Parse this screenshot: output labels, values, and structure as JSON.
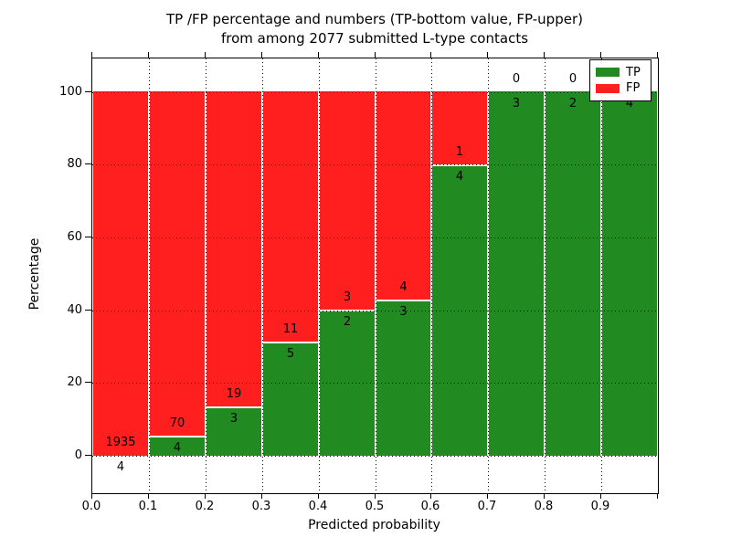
{
  "title": {
    "line1": "TP /FP percentage and numbers (TP-bottom value, FP-upper)",
    "line2": "from among 2077 submitted L-type contacts"
  },
  "axes": {
    "xlabel": "Predicted probability",
    "ylabel": "Percentage",
    "x_tick_labels": [
      "0.0",
      "0.1",
      "0.2",
      "0.3",
      "0.4",
      "0.5",
      "0.6",
      "0.7",
      "0.8",
      "0.9"
    ],
    "y_tick_labels": [
      "0",
      "20",
      "40",
      "60",
      "80",
      "100"
    ],
    "y_tick_values": [
      0,
      20,
      40,
      60,
      80,
      100
    ]
  },
  "legend": {
    "items": [
      {
        "label": "TP",
        "color": "#218a21"
      },
      {
        "label": "FP",
        "color": "#ff1f1f"
      }
    ],
    "position": "upper right"
  },
  "colors": {
    "tp": "#218a21",
    "fp": "#ff1f1f",
    "grid": "#000000",
    "background": "#ffffff"
  },
  "chart_data": {
    "type": "bar",
    "stacked": true,
    "normalized": "percent",
    "title": "TP /FP percentage and numbers (TP-bottom value, FP-upper) from among 2077 submitted L-type contacts",
    "xlabel": "Predicted probability",
    "ylabel": "Percentage",
    "xlim": [
      0.0,
      1.0
    ],
    "ylim": [
      -10,
      110
    ],
    "bin_width": 0.1,
    "grid": "dotted",
    "legend_position": "upper right",
    "categories": [
      "0.0-0.1",
      "0.1-0.2",
      "0.2-0.3",
      "0.3-0.4",
      "0.4-0.5",
      "0.5-0.6",
      "0.6-0.7",
      "0.7-0.8",
      "0.8-0.9",
      "0.9-1.0"
    ],
    "series": [
      {
        "name": "TP",
        "color": "#218a21",
        "counts": [
          4,
          4,
          3,
          5,
          2,
          3,
          4,
          3,
          2,
          4
        ]
      },
      {
        "name": "FP",
        "color": "#ff1f1f",
        "counts": [
          1935,
          70,
          19,
          11,
          3,
          4,
          1,
          0,
          0,
          0
        ]
      }
    ],
    "tp_percent": [
      0.21,
      5.41,
      13.64,
      31.25,
      40.0,
      42.86,
      80.0,
      100.0,
      100.0,
      100.0
    ],
    "total_contacts": 2077
  }
}
